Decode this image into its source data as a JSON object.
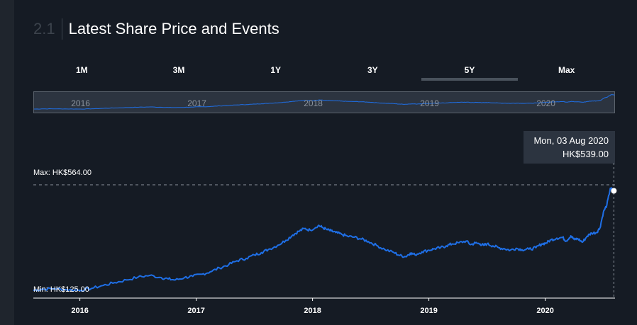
{
  "header": {
    "section_number": "2.1",
    "title": "Latest Share Price and Events"
  },
  "tabs": [
    {
      "label": "1M",
      "active": false
    },
    {
      "label": "3M",
      "active": false
    },
    {
      "label": "1Y",
      "active": false
    },
    {
      "label": "3Y",
      "active": false
    },
    {
      "label": "5Y",
      "active": true
    },
    {
      "label": "Max",
      "active": false
    }
  ],
  "tooltip": {
    "date": "Mon, 03 Aug 2020",
    "price": "HK$539.00"
  },
  "colors": {
    "line": "#1f6fe6",
    "background": "#151b24",
    "navigator_fill": "#2c3440",
    "tick_label": "#ffffff",
    "muted": "#8a929c"
  },
  "navigator": {
    "year_labels": [
      "2016",
      "2017",
      "2018",
      "2019",
      "2020"
    ]
  },
  "chart_data": {
    "type": "line",
    "title": "",
    "xlabel": "",
    "ylabel": "",
    "x_ticks": [
      "2016",
      "2017",
      "2018",
      "2019",
      "2020"
    ],
    "x_range": [
      2015.6,
      2020.6
    ],
    "y_range": [
      125,
      564
    ],
    "max_label": "Max: HK$564.00",
    "min_label": "Min: HK$125.00",
    "grid": false,
    "series": [
      {
        "x": [
          2015.6,
          2015.68,
          2015.78,
          2015.88,
          2016.0,
          2016.1,
          2016.2,
          2016.3,
          2016.4,
          2016.5,
          2016.6,
          2016.7,
          2016.76,
          2016.82,
          2016.9,
          2016.97,
          2017.05,
          2017.12,
          2017.2,
          2017.28,
          2017.35,
          2017.43,
          2017.5,
          2017.56,
          2017.62,
          2017.7,
          2017.77,
          2017.83,
          2017.88,
          2017.93,
          2017.98,
          2018.05,
          2018.08,
          2018.12,
          2018.16,
          2018.2,
          2018.25,
          2018.3,
          2018.36,
          2018.42,
          2018.48,
          2018.55,
          2018.62,
          2018.7,
          2018.75,
          2018.8,
          2018.84,
          2018.88,
          2018.94,
          2019.0,
          2019.05,
          2019.1,
          2019.15,
          2019.2,
          2019.26,
          2019.32,
          2019.36,
          2019.4,
          2019.44,
          2019.47,
          2019.5,
          2019.55,
          2019.6,
          2019.65,
          2019.7,
          2019.75,
          2019.8,
          2019.86,
          2019.92,
          2019.97,
          2020.01,
          2020.05,
          2020.1,
          2020.15,
          2020.18,
          2020.22,
          2020.25,
          2020.28,
          2020.32,
          2020.36,
          2020.4,
          2020.44,
          2020.47,
          2020.5,
          2020.53,
          2020.56,
          2020.59
        ],
        "y": [
          125,
          130,
          132,
          128,
          125,
          133,
          145,
          157,
          168,
          180,
          187,
          178,
          172,
          168,
          178,
          183,
          192,
          202,
          218,
          232,
          248,
          258,
          272,
          282,
          295,
          312,
          333,
          355,
          370,
          382,
          375,
          395,
          388,
          378,
          372,
          365,
          358,
          350,
          346,
          338,
          328,
          312,
          295,
          282,
          270,
          265,
          280,
          273,
          285,
          292,
          298,
          302,
          310,
          318,
          323,
          330,
          315,
          322,
          318,
          312,
          318,
          310,
          302,
          298,
          292,
          300,
          294,
          296,
          302,
          318,
          322,
          335,
          342,
          345,
          330,
          352,
          336,
          340,
          325,
          350,
          363,
          365,
          384,
          450,
          480,
          550,
          539
        ]
      }
    ]
  }
}
